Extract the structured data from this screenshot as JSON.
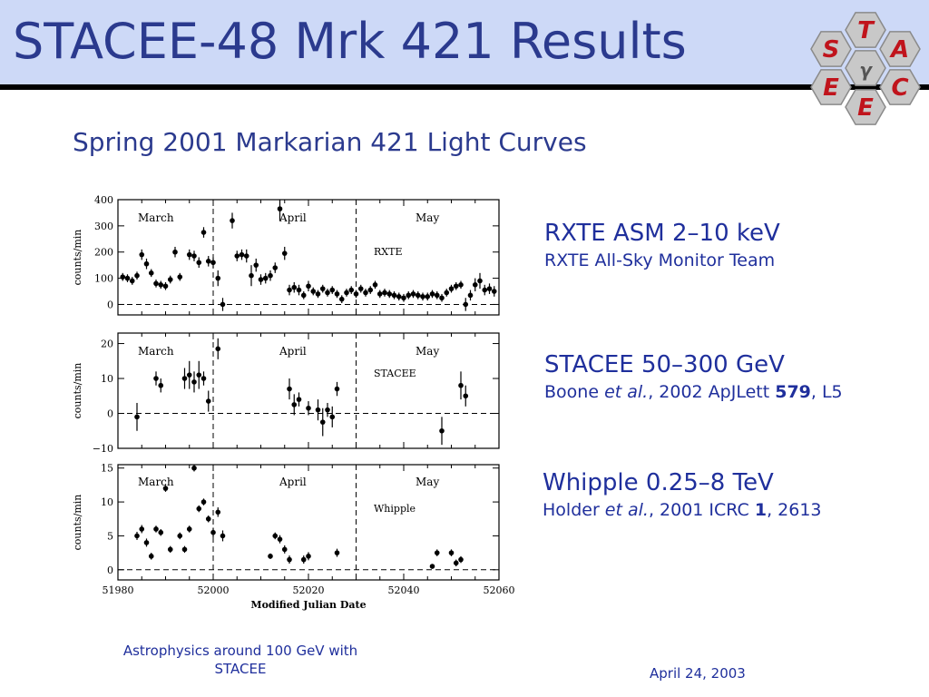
{
  "slide": {
    "title": "STACEE-48 Mrk 421 Results",
    "subtitle": "Spring 2001 Markarian 421 Light Curves",
    "logo_letters": [
      "T",
      "S",
      "A",
      "E",
      "C",
      "E",
      "γ"
    ],
    "footer_left_line1": "Astrophysics around 100 GeV with",
    "footer_left_line2": "STACEE",
    "footer_date": "April 24, 2003"
  },
  "legend": [
    {
      "head": "RXTE ASM  2–10 keV",
      "sub_plain": "RXTE All-Sky Monitor Team"
    },
    {
      "head": "STACEE 50–300 GeV",
      "sub_a": "Boone ",
      "sub_em": "et al.",
      "sub_b": ", 2002 ApJLett ",
      "sub_bold": "579",
      "sub_c": ", L5"
    },
    {
      "head": "Whipple 0.25–8 TeV",
      "sub_a": "Holder ",
      "sub_em": "et al.",
      "sub_b": ", 2001 ICRC ",
      "sub_bold": "1",
      "sub_c": ", 2613"
    }
  ],
  "colors": {
    "text_blue": "#1f2f9c",
    "header_bg": "#cdd9f7",
    "logo_fill": "#c8c8c8",
    "logo_letters": "#c0141c"
  },
  "chart_data": [
    {
      "type": "scatter",
      "panel": "RXTE",
      "ylabel": "counts/min",
      "ylim": [
        -40,
        400
      ],
      "yticks": [
        0,
        100,
        200,
        300,
        400
      ],
      "xlim": [
        51980,
        52060
      ],
      "month_labels": [
        "March",
        "April",
        "May"
      ],
      "month_dividers": [
        52000,
        52030
      ],
      "points": [
        {
          "x": 51981,
          "y": 105,
          "e": 15
        },
        {
          "x": 51982,
          "y": 100,
          "e": 15
        },
        {
          "x": 51983,
          "y": 90,
          "e": 15
        },
        {
          "x": 51984,
          "y": 110,
          "e": 15
        },
        {
          "x": 51985,
          "y": 190,
          "e": 20
        },
        {
          "x": 51986,
          "y": 155,
          "e": 20
        },
        {
          "x": 51987,
          "y": 120,
          "e": 15
        },
        {
          "x": 51988,
          "y": 80,
          "e": 15
        },
        {
          "x": 51989,
          "y": 75,
          "e": 15
        },
        {
          "x": 51990,
          "y": 70,
          "e": 15
        },
        {
          "x": 51991,
          "y": 95,
          "e": 15
        },
        {
          "x": 51992,
          "y": 200,
          "e": 20
        },
        {
          "x": 51993,
          "y": 105,
          "e": 15
        },
        {
          "x": 51995,
          "y": 190,
          "e": 20
        },
        {
          "x": 51996,
          "y": 185,
          "e": 20
        },
        {
          "x": 51997,
          "y": 160,
          "e": 20
        },
        {
          "x": 51998,
          "y": 275,
          "e": 20
        },
        {
          "x": 51999,
          "y": 165,
          "e": 20
        },
        {
          "x": 52000,
          "y": 160,
          "e": 20
        },
        {
          "x": 52001,
          "y": 100,
          "e": 30
        },
        {
          "x": 52002,
          "y": 0,
          "e": 25
        },
        {
          "x": 52004,
          "y": 320,
          "e": 30
        },
        {
          "x": 52005,
          "y": 185,
          "e": 20
        },
        {
          "x": 52006,
          "y": 190,
          "e": 20
        },
        {
          "x": 52007,
          "y": 185,
          "e": 25
        },
        {
          "x": 52008,
          "y": 110,
          "e": 40
        },
        {
          "x": 52009,
          "y": 150,
          "e": 25
        },
        {
          "x": 52010,
          "y": 95,
          "e": 20
        },
        {
          "x": 52011,
          "y": 100,
          "e": 20
        },
        {
          "x": 52012,
          "y": 110,
          "e": 20
        },
        {
          "x": 52013,
          "y": 140,
          "e": 20
        },
        {
          "x": 52014,
          "y": 365,
          "e": 45
        },
        {
          "x": 52015,
          "y": 195,
          "e": 25
        },
        {
          "x": 52016,
          "y": 55,
          "e": 20
        },
        {
          "x": 52017,
          "y": 65,
          "e": 20
        },
        {
          "x": 52018,
          "y": 55,
          "e": 20
        },
        {
          "x": 52019,
          "y": 35,
          "e": 15
        },
        {
          "x": 52020,
          "y": 70,
          "e": 20
        },
        {
          "x": 52021,
          "y": 50,
          "e": 15
        },
        {
          "x": 52022,
          "y": 40,
          "e": 15
        },
        {
          "x": 52023,
          "y": 60,
          "e": 15
        },
        {
          "x": 52024,
          "y": 45,
          "e": 15
        },
        {
          "x": 52025,
          "y": 55,
          "e": 15
        },
        {
          "x": 52026,
          "y": 40,
          "e": 15
        },
        {
          "x": 52027,
          "y": 20,
          "e": 15
        },
        {
          "x": 52028,
          "y": 45,
          "e": 15
        },
        {
          "x": 52029,
          "y": 55,
          "e": 15
        },
        {
          "x": 52030,
          "y": 40,
          "e": 15
        },
        {
          "x": 52031,
          "y": 60,
          "e": 15
        },
        {
          "x": 52032,
          "y": 45,
          "e": 15
        },
        {
          "x": 52033,
          "y": 55,
          "e": 15
        },
        {
          "x": 52034,
          "y": 75,
          "e": 15
        },
        {
          "x": 52035,
          "y": 40,
          "e": 15
        },
        {
          "x": 52036,
          "y": 45,
          "e": 15
        },
        {
          "x": 52037,
          "y": 40,
          "e": 15
        },
        {
          "x": 52038,
          "y": 35,
          "e": 15
        },
        {
          "x": 52039,
          "y": 30,
          "e": 15
        },
        {
          "x": 52040,
          "y": 25,
          "e": 15
        },
        {
          "x": 52041,
          "y": 35,
          "e": 15
        },
        {
          "x": 52042,
          "y": 40,
          "e": 15
        },
        {
          "x": 52043,
          "y": 35,
          "e": 15
        },
        {
          "x": 52044,
          "y": 30,
          "e": 15
        },
        {
          "x": 52045,
          "y": 30,
          "e": 15
        },
        {
          "x": 52046,
          "y": 40,
          "e": 15
        },
        {
          "x": 52047,
          "y": 35,
          "e": 15
        },
        {
          "x": 52048,
          "y": 25,
          "e": 15
        },
        {
          "x": 52049,
          "y": 45,
          "e": 15
        },
        {
          "x": 52050,
          "y": 60,
          "e": 15
        },
        {
          "x": 52051,
          "y": 70,
          "e": 15
        },
        {
          "x": 52052,
          "y": 75,
          "e": 15
        },
        {
          "x": 52053,
          "y": 0,
          "e": 25
        },
        {
          "x": 52054,
          "y": 35,
          "e": 20
        },
        {
          "x": 52055,
          "y": 75,
          "e": 25
        },
        {
          "x": 52056,
          "y": 90,
          "e": 30
        },
        {
          "x": 52057,
          "y": 55,
          "e": 20
        },
        {
          "x": 52058,
          "y": 60,
          "e": 20
        },
        {
          "x": 52059,
          "y": 50,
          "e": 20
        }
      ]
    },
    {
      "type": "scatter",
      "panel": "STACEE",
      "ylabel": "counts/min",
      "ylim": [
        -10,
        23
      ],
      "yticks": [
        -10,
        0,
        10,
        20
      ],
      "xlim": [
        51980,
        52060
      ],
      "month_labels": [
        "March",
        "April",
        "May"
      ],
      "month_dividers": [
        52000,
        52030
      ],
      "points": [
        {
          "x": 51984,
          "y": -1,
          "e": 4
        },
        {
          "x": 51988,
          "y": 10,
          "e": 2
        },
        {
          "x": 51989,
          "y": 8,
          "e": 2
        },
        {
          "x": 51994,
          "y": 10,
          "e": 3
        },
        {
          "x": 51995,
          "y": 11,
          "e": 4
        },
        {
          "x": 51996,
          "y": 9,
          "e": 3
        },
        {
          "x": 51997,
          "y": 11,
          "e": 4
        },
        {
          "x": 51998,
          "y": 10,
          "e": 2
        },
        {
          "x": 51999,
          "y": 3.5,
          "e": 3
        },
        {
          "x": 52001,
          "y": 18.5,
          "e": 3
        },
        {
          "x": 52016,
          "y": 7,
          "e": 3
        },
        {
          "x": 52017,
          "y": 2.5,
          "e": 3
        },
        {
          "x": 52018,
          "y": 4,
          "e": 2
        },
        {
          "x": 52020,
          "y": 1.5,
          "e": 2
        },
        {
          "x": 52022,
          "y": 1,
          "e": 3
        },
        {
          "x": 52023,
          "y": -2.5,
          "e": 4
        },
        {
          "x": 52024,
          "y": 1,
          "e": 2
        },
        {
          "x": 52025,
          "y": -1,
          "e": 3
        },
        {
          "x": 52026,
          "y": 7,
          "e": 2
        },
        {
          "x": 52048,
          "y": -5,
          "e": 4
        },
        {
          "x": 52052,
          "y": 8,
          "e": 4
        },
        {
          "x": 52053,
          "y": 5,
          "e": 3
        }
      ]
    },
    {
      "type": "scatter",
      "panel": "Whipple",
      "ylabel": "counts/min",
      "xlabel": "Modified Julian Date",
      "ylim": [
        -1.5,
        15.5
      ],
      "yticks": [
        0,
        5,
        10,
        15
      ],
      "xlim": [
        51980,
        52060
      ],
      "xticks": [
        51980,
        52000,
        52020,
        52040,
        52060
      ],
      "month_labels": [
        "March",
        "April",
        "May"
      ],
      "month_dividers": [
        52000,
        52030
      ],
      "points": [
        {
          "x": 51984,
          "y": 5,
          "e": 0.6
        },
        {
          "x": 51985,
          "y": 6,
          "e": 0.6
        },
        {
          "x": 51986,
          "y": 4,
          "e": 0.6
        },
        {
          "x": 51987,
          "y": 2,
          "e": 0.5
        },
        {
          "x": 51988,
          "y": 6,
          "e": 0.5
        },
        {
          "x": 51989,
          "y": 5.5,
          "e": 0.5
        },
        {
          "x": 51990,
          "y": 12,
          "e": 0.5
        },
        {
          "x": 51991,
          "y": 3,
          "e": 0.5
        },
        {
          "x": 51993,
          "y": 5,
          "e": 0.5
        },
        {
          "x": 51994,
          "y": 3,
          "e": 0.5
        },
        {
          "x": 51995,
          "y": 6,
          "e": 0.5
        },
        {
          "x": 51996,
          "y": 15,
          "e": 0.5
        },
        {
          "x": 51997,
          "y": 9,
          "e": 0.5
        },
        {
          "x": 51998,
          "y": 10,
          "e": 0.5
        },
        {
          "x": 51999,
          "y": 7.5,
          "e": 0.5
        },
        {
          "x": 52000,
          "y": 5.5,
          "e": 0.7
        },
        {
          "x": 52001,
          "y": 8.5,
          "e": 0.7
        },
        {
          "x": 52002,
          "y": 5,
          "e": 0.8
        },
        {
          "x": 52012,
          "y": 2,
          "e": 0.4
        },
        {
          "x": 52013,
          "y": 5,
          "e": 0.5
        },
        {
          "x": 52014,
          "y": 4.5,
          "e": 0.6
        },
        {
          "x": 52015,
          "y": 3,
          "e": 0.6
        },
        {
          "x": 52016,
          "y": 1.5,
          "e": 0.6
        },
        {
          "x": 52019,
          "y": 1.5,
          "e": 0.6
        },
        {
          "x": 52020,
          "y": 2,
          "e": 0.6
        },
        {
          "x": 52026,
          "y": 2.5,
          "e": 0.6
        },
        {
          "x": 52046,
          "y": 0.5,
          "e": 0.3
        },
        {
          "x": 52047,
          "y": 2.5,
          "e": 0.5
        },
        {
          "x": 52050,
          "y": 2.5,
          "e": 0.5
        },
        {
          "x": 52051,
          "y": 1,
          "e": 0.5
        },
        {
          "x": 52052,
          "y": 1.5,
          "e": 0.5
        }
      ]
    }
  ]
}
